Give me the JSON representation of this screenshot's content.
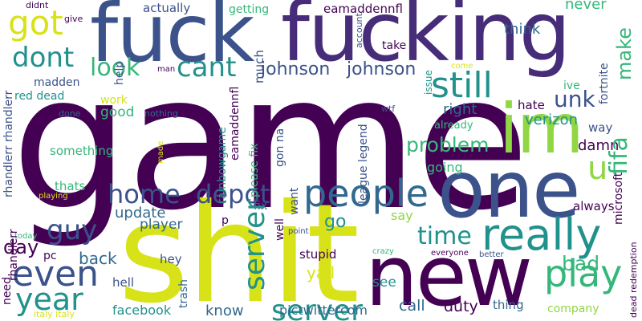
{
  "palette": {
    "dark_purple": "#440154",
    "indigo": "#3b528b",
    "blue": "#31688e",
    "teal": "#21918c",
    "green": "#35b779",
    "lime": "#90d743",
    "yellow": "#d8e219",
    "dark_violet": "#472c7a"
  },
  "words": {
    "game": "game",
    "shit": "shit",
    "fuck": "fuck",
    "fucking": "fucking",
    "new": "new",
    "one": "one",
    "im": "im",
    "people": "people",
    "really": "really",
    "got": "got",
    "dont": "dont",
    "still": "still",
    "cant": "cant",
    "look": "look",
    "unk": "unk",
    "make": "make",
    "fifa": "fifa",
    "johnson1": "johnson",
    "johnson2": "johnson",
    "home": "home",
    "depot": "depot",
    "guy": "guy",
    "even": "even",
    "year": "year",
    "server": "server",
    "play": "play",
    "time": "time",
    "problem": "problem",
    "u": "u",
    "day": "day",
    "back": "back",
    "bad": "bad",
    "update": "update",
    "player": "player",
    "go": "go",
    "call": "call",
    "duty": "duty",
    "yall": "yall",
    "see": "see",
    "facebook": "facebook",
    "know": "know",
    "pictwittercom": "pictwittercom",
    "verizon": "verizon",
    "right": "right",
    "hate": "hate",
    "good": "good",
    "work": "work",
    "something": "something",
    "thats": "thats",
    "going": "going",
    "damn": "damn",
    "way": "way",
    "ive": "ive",
    "never": "never",
    "think": "think",
    "actually": "actually",
    "getting": "getting",
    "eamaddennfl": "eamaddennfl",
    "madden": "madden",
    "red_dead": "red dead",
    "help": "help",
    "much": "much",
    "take": "take",
    "league_legend": "league legend",
    "fix": "fix",
    "please_fix": "please fix",
    "want": "want",
    "gon_na": "gon na",
    "well": "well",
    "rainbowgame": "rainbowgame",
    "rhandlerr_rhandlerr": "rhandlerr rhandlerr",
    "rhandlerr": "rhandlerr",
    "pc": "pc",
    "hey": "hey",
    "hell": "hell",
    "trash": "trash",
    "need": "need",
    "stupid": "stupid",
    "p": "p",
    "say": "say",
    "always": "always",
    "microsoft": "microsoft",
    "fortnite": "fortnite",
    "already": "already",
    "issue": "issue",
    "account": "account",
    "didnt": "didnt",
    "give": "give",
    "man": "man",
    "come": "come",
    "wtf": "wtf",
    "nothing": "nothing",
    "done": "done",
    "made": "made",
    "playing": "playing",
    "today": "today",
    "point": "point",
    "crazy": "crazy",
    "everyone": "everyone",
    "better": "better",
    "thing": "thing",
    "company": "company",
    "dead_redemption": "dead redemption",
    "italy_italy": "italy italy",
    "eamaddennfl_alt": "eamaddennfl"
  }
}
